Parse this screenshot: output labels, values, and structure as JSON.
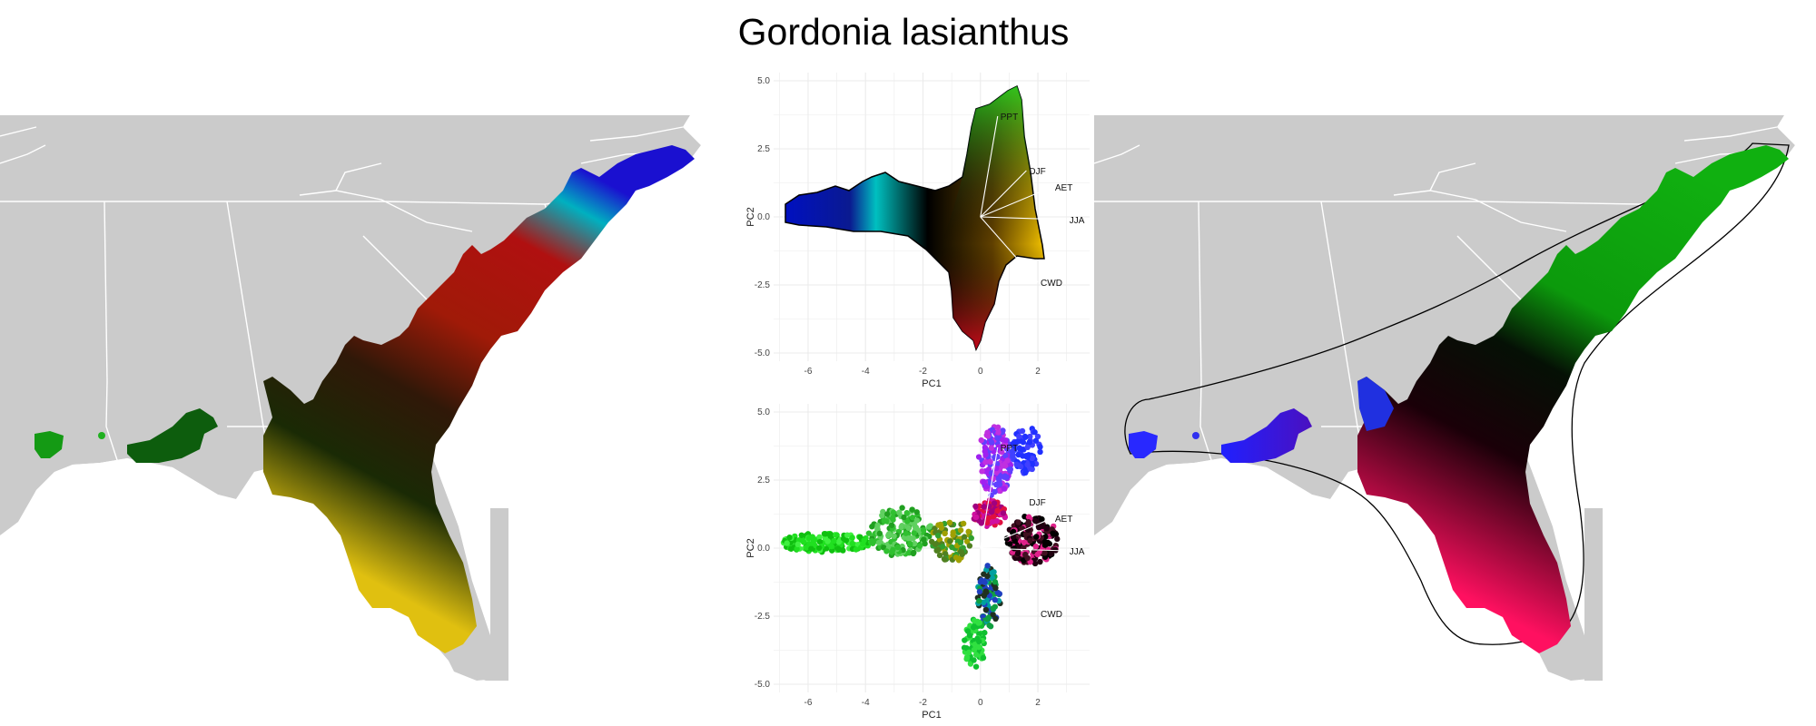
{
  "title": "Gordonia lasianthus",
  "colors": {
    "land": "#cbcbcb",
    "state_border": "#ffffff",
    "panel_grid": "#ebebeb",
    "loading_line": "#ffffff",
    "outline": "#000000"
  },
  "chart_data": [
    {
      "type": "map",
      "panel": "left",
      "description_colors": [
        "green",
        "red",
        "black",
        "orange",
        "yellow",
        "blue",
        "magenta"
      ]
    },
    {
      "type": "biplot",
      "panel": "center-top",
      "xlabel": "PC1",
      "ylabel": "PC2",
      "xticks": [
        -6,
        -4,
        -2,
        0,
        2
      ],
      "yticks": [
        5.0,
        2.5,
        0.0,
        -2.5,
        -5.0
      ],
      "ytick_labels": [
        "5.0",
        "2.5",
        "0.0",
        "-2.5",
        "-5.0"
      ],
      "xlim": [
        -7.2,
        3.8
      ],
      "ylim": [
        -5.3,
        5.3
      ],
      "grid": true,
      "vectors": [
        {
          "name": "PPT",
          "x": 0.6,
          "y": 3.7
        },
        {
          "name": "DJF",
          "x": 1.6,
          "y": 1.7
        },
        {
          "name": "AET",
          "x": 2.5,
          "y": 1.1
        },
        {
          "name": "JJA",
          "x": 3.0,
          "y": -0.1
        },
        {
          "name": "CWD",
          "x": 2.0,
          "y": -2.4
        }
      ]
    },
    {
      "type": "scatter",
      "panel": "center-bottom",
      "xlabel": "PC1",
      "ylabel": "PC2",
      "xticks": [
        -6,
        -4,
        -2,
        0,
        2
      ],
      "yticks": [
        5.0,
        2.5,
        0.0,
        -2.5,
        -5.0
      ],
      "ytick_labels": [
        "5.0",
        "2.5",
        "0.0",
        "-2.5",
        "-5.0"
      ],
      "xlim": [
        -7.2,
        3.8
      ],
      "ylim": [
        -5.3,
        5.3
      ],
      "grid": true,
      "vectors": [
        {
          "name": "PPT",
          "x": 0.6,
          "y": 3.7
        },
        {
          "name": "DJF",
          "x": 1.6,
          "y": 1.7
        },
        {
          "name": "AET",
          "x": 2.5,
          "y": 1.1
        },
        {
          "name": "JJA",
          "x": 3.0,
          "y": -0.1
        },
        {
          "name": "CWD",
          "x": 2.0,
          "y": -2.4
        }
      ]
    },
    {
      "type": "map",
      "panel": "right",
      "description_colors": [
        "green",
        "black",
        "blue",
        "magenta",
        "red",
        "yellow"
      ]
    }
  ]
}
